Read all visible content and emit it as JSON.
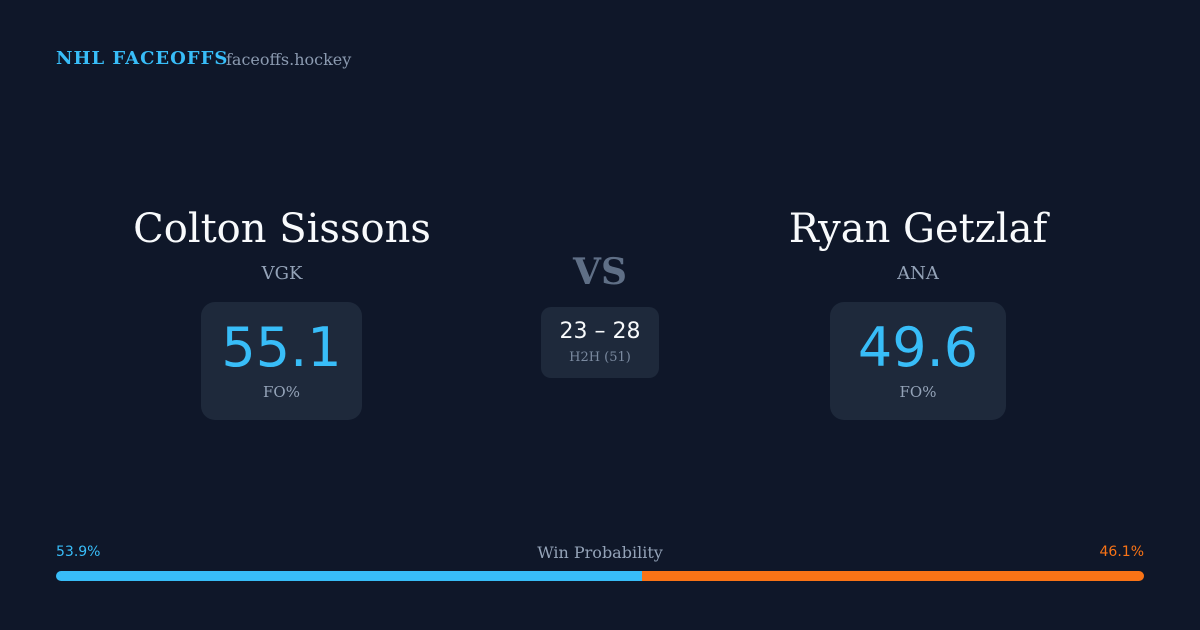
{
  "header": {
    "brand": "NHL FACEOFFS",
    "domain": "faceoffs.hockey"
  },
  "players": [
    {
      "name": "Colton Sissons",
      "team": "VGK",
      "fo_pct": 55.1,
      "fo_label": "FO%"
    },
    {
      "name": "Ryan Getzlaf",
      "team": "ANA",
      "fo_pct": 49.6,
      "fo_label": "FO%"
    }
  ],
  "vs": "VS",
  "h2h": {
    "score": "23 – 28",
    "label": "H2H (51)"
  },
  "win_probability": {
    "title": "Win Probability",
    "home": {
      "value": 53.9,
      "label": "53.9%",
      "color": "#38bdf8"
    },
    "away": {
      "value": 46.1,
      "label": "46.1%",
      "color": "#f97316"
    }
  }
}
